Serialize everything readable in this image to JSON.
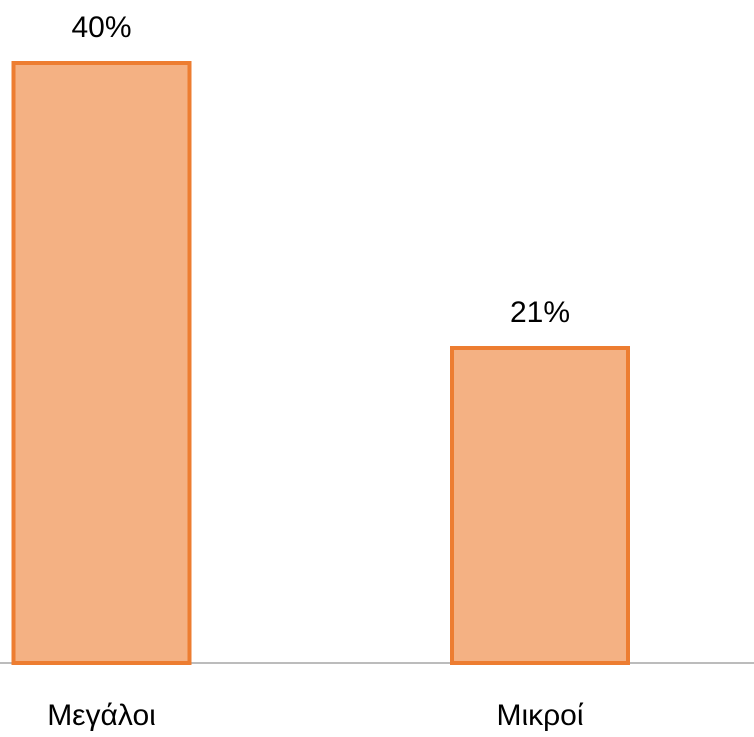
{
  "chart_data": {
    "type": "bar",
    "categories": [
      "Μεγάλοι",
      "Μικροί"
    ],
    "values": [
      40,
      21
    ],
    "value_labels": [
      "40%",
      "21%"
    ],
    "color": "#f4b183",
    "edge_color": "#ed7d31"
  }
}
